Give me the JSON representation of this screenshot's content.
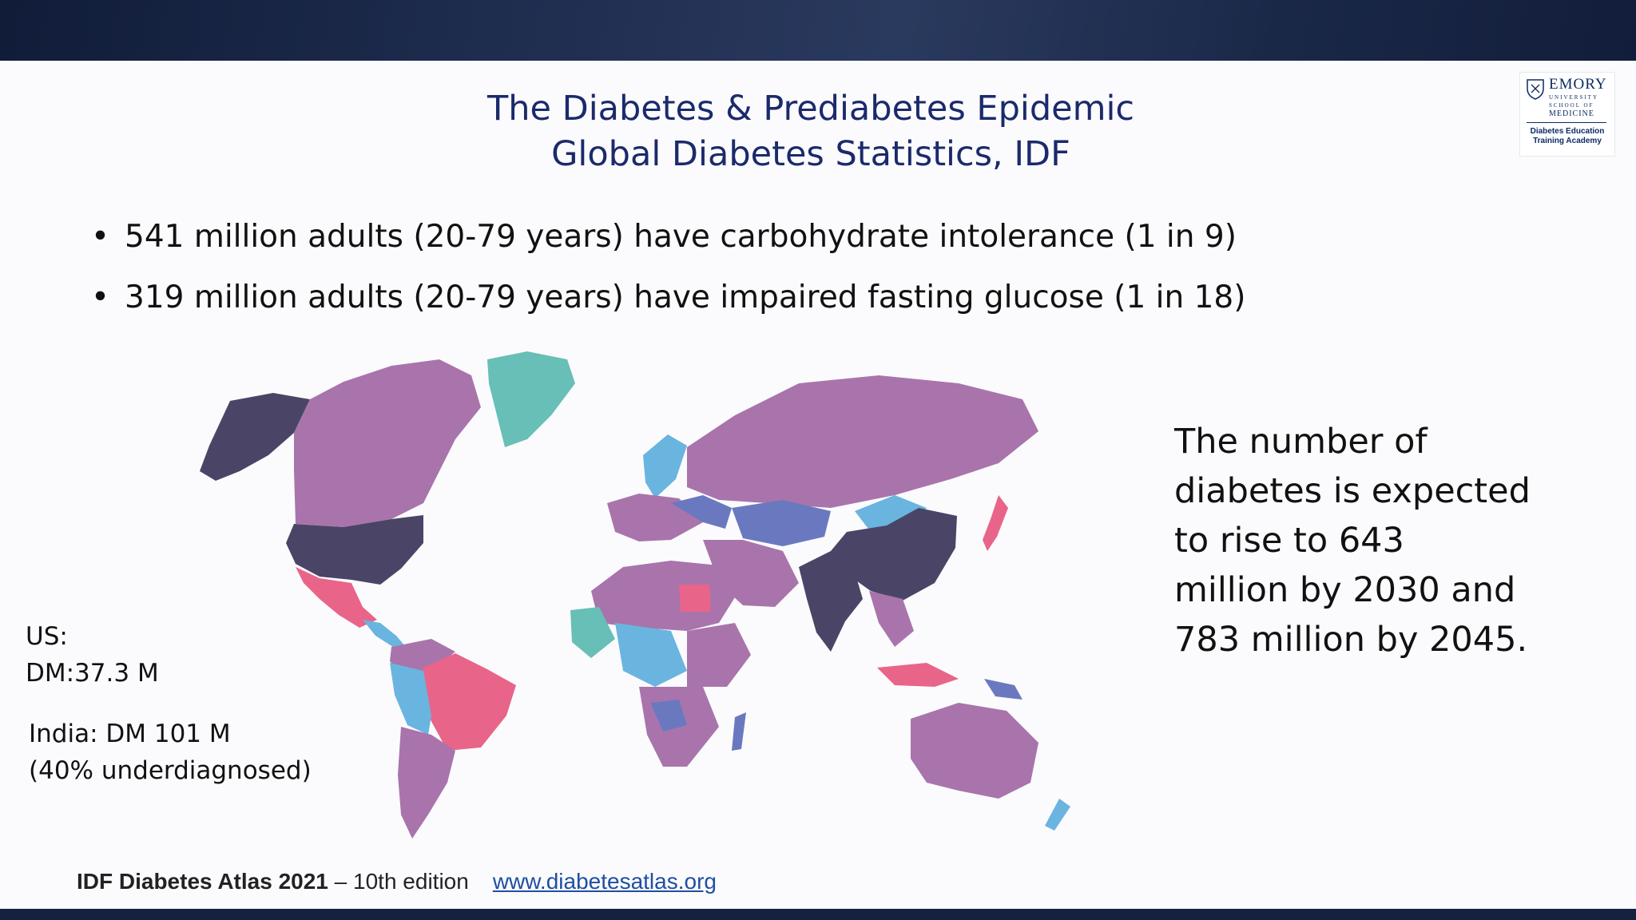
{
  "slide": {
    "title_line1": "The Diabetes & Prediabetes Epidemic",
    "title_line2": "Global Diabetes Statistics, IDF",
    "bullets": [
      "541 million adults (20-79 years) have carbohydrate intolerance (1 in 9)",
      "319 million adults (20-79 years) have impaired fasting glucose (1 in 18)"
    ],
    "us_stat": "US:\nDM:37.3 M",
    "india_stat": "India: DM 101 M\n(40% underdiagnosed)",
    "projection": [
      "The number of",
      "diabetes is expected",
      "to rise to 643",
      "million by 2030 and",
      "783 million by 2045."
    ],
    "footer_bold": "IDF Diabetes Atlas 2021",
    "footer_rest": " – 10th edition",
    "footer_link": "www.diabetesatlas.org"
  },
  "logo": {
    "name": "EMORY",
    "sub": "UNIVERSITY\nSCHOOL OF",
    "school": "MEDICINE",
    "program": "Diabetes Education\nTraining Academy"
  },
  "map_colors": {
    "darkest": "#4a4466",
    "purple": "#a974ab",
    "blue": "#6a79bf",
    "light_blue": "#6ab4e0",
    "teal": "#67bfb7",
    "pink": "#e96489",
    "grey": "#c8c8cc"
  }
}
